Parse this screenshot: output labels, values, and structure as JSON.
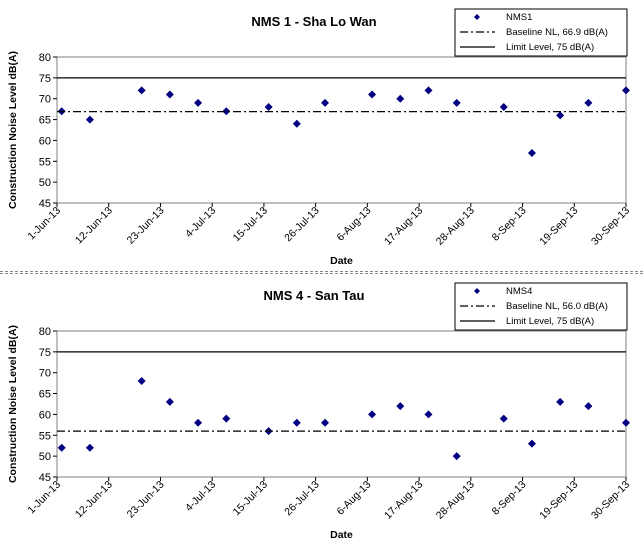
{
  "chart_data": [
    {
      "type": "scatter",
      "title": "NMS 1 - Sha Lo Wan",
      "xlabel": "Date",
      "ylabel": "Construction Noise Level  dB(A)",
      "ylim": [
        45,
        80
      ],
      "yticks": [
        45,
        50,
        55,
        60,
        65,
        70,
        75,
        80
      ],
      "xlim": [
        "2013-06-01",
        "2013-09-30"
      ],
      "xticks": [
        "1-Jun-13",
        "12-Jun-13",
        "23-Jun-13",
        "4-Jul-13",
        "15-Jul-13",
        "26-Jul-13",
        "6-Aug-13",
        "17-Aug-13",
        "28-Aug-13",
        "8-Sep-13",
        "19-Sep-13",
        "30-Sep-13"
      ],
      "grid": false,
      "legend_position": "top-right",
      "series": [
        {
          "name": "NMS1",
          "marker": "diamond",
          "color": "#000080",
          "points": [
            {
              "x": "2013-06-02",
              "y": 67
            },
            {
              "x": "2013-06-08",
              "y": 65
            },
            {
              "x": "2013-06-19",
              "y": 72
            },
            {
              "x": "2013-06-25",
              "y": 71
            },
            {
              "x": "2013-07-01",
              "y": 69
            },
            {
              "x": "2013-07-07",
              "y": 67
            },
            {
              "x": "2013-07-16",
              "y": 68
            },
            {
              "x": "2013-07-22",
              "y": 64
            },
            {
              "x": "2013-07-28",
              "y": 69
            },
            {
              "x": "2013-08-07",
              "y": 71
            },
            {
              "x": "2013-08-13",
              "y": 70
            },
            {
              "x": "2013-08-19",
              "y": 72
            },
            {
              "x": "2013-08-25",
              "y": 69
            },
            {
              "x": "2013-09-04",
              "y": 68
            },
            {
              "x": "2013-09-10",
              "y": 57
            },
            {
              "x": "2013-09-16",
              "y": 66
            },
            {
              "x": "2013-09-22",
              "y": 69
            },
            {
              "x": "2013-09-30",
              "y": 72
            }
          ]
        },
        {
          "name": "Baseline NL, 66.9 dB(A)",
          "type": "hline",
          "style": "dash-dot",
          "color": "#000000",
          "y": 66.9
        },
        {
          "name": "Limit Level, 75 dB(A)",
          "type": "hline",
          "style": "solid",
          "color": "#000000",
          "y": 75
        }
      ]
    },
    {
      "type": "scatter",
      "title": "NMS 4 - San Tau",
      "xlabel": "Date",
      "ylabel": "Construction Noise Level  dB(A)",
      "ylim": [
        45,
        80
      ],
      "yticks": [
        45,
        50,
        55,
        60,
        65,
        70,
        75,
        80
      ],
      "xlim": [
        "2013-06-01",
        "2013-09-30"
      ],
      "xticks": [
        "1-Jun-13",
        "12-Jun-13",
        "23-Jun-13",
        "4-Jul-13",
        "15-Jul-13",
        "26-Jul-13",
        "6-Aug-13",
        "17-Aug-13",
        "28-Aug-13",
        "8-Sep-13",
        "19-Sep-13",
        "30-Sep-13"
      ],
      "grid": false,
      "legend_position": "top-right",
      "series": [
        {
          "name": "NMS4",
          "marker": "diamond",
          "color": "#000080",
          "points": [
            {
              "x": "2013-06-02",
              "y": 52
            },
            {
              "x": "2013-06-08",
              "y": 52
            },
            {
              "x": "2013-06-19",
              "y": 68
            },
            {
              "x": "2013-06-25",
              "y": 63
            },
            {
              "x": "2013-07-01",
              "y": 58
            },
            {
              "x": "2013-07-07",
              "y": 59
            },
            {
              "x": "2013-07-16",
              "y": 56
            },
            {
              "x": "2013-07-22",
              "y": 58
            },
            {
              "x": "2013-07-28",
              "y": 58
            },
            {
              "x": "2013-08-07",
              "y": 60
            },
            {
              "x": "2013-08-13",
              "y": 62
            },
            {
              "x": "2013-08-19",
              "y": 60
            },
            {
              "x": "2013-08-25",
              "y": 50
            },
            {
              "x": "2013-09-04",
              "y": 59
            },
            {
              "x": "2013-09-10",
              "y": 53
            },
            {
              "x": "2013-09-16",
              "y": 63
            },
            {
              "x": "2013-09-22",
              "y": 62
            },
            {
              "x": "2013-09-30",
              "y": 58
            }
          ]
        },
        {
          "name": "Baseline NL, 56.0 dB(A)",
          "type": "hline",
          "style": "dash-dot",
          "color": "#000000",
          "y": 56.0
        },
        {
          "name": "Limit Level, 75 dB(A)",
          "type": "hline",
          "style": "solid",
          "color": "#000000",
          "y": 75
        }
      ]
    }
  ]
}
